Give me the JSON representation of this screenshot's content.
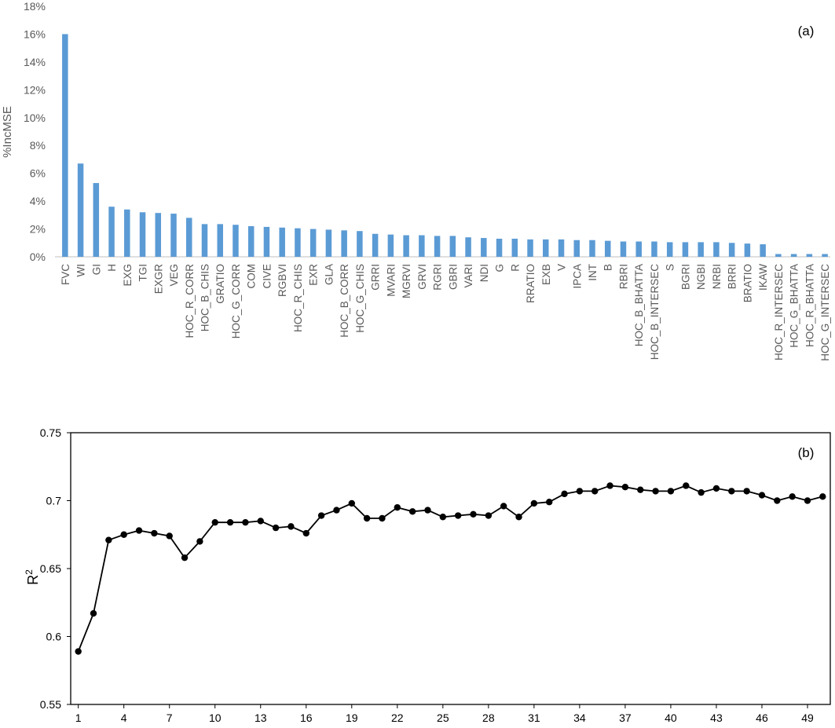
{
  "chart_data": [
    {
      "type": "bar",
      "panel_label": "(a)",
      "ylabel": "%IncMSE",
      "yticks": [
        "0%",
        "2%",
        "4%",
        "6%",
        "8%",
        "10%",
        "12%",
        "14%",
        "16%",
        "18%"
      ],
      "ylim": [
        0,
        18
      ],
      "grid": false,
      "bar_color": "#5b9bd5",
      "categories": [
        "FVC",
        "WI",
        "GI",
        "H",
        "EXG",
        "TGI",
        "EXGR",
        "VEG",
        "HOC_R_CORR",
        "HOC_B_CHIS",
        "GRATIO",
        "HOC_G_CORR",
        "COM",
        "CIVE",
        "RGBVI",
        "HOC_R_CHIS",
        "EXR",
        "GLA",
        "HOC_B_CORR",
        "HOC_G_CHIS",
        "GRRI",
        "MVARI",
        "MGRVI",
        "GRVI",
        "RGRI",
        "GBRI",
        "VARI",
        "NDI",
        "G",
        "R",
        "RRATIO",
        "EXB",
        "V",
        "IPCA",
        "INT",
        "B",
        "RBRI",
        "HOC_B_BHATTA",
        "HOC_B_INTERSEC",
        "S",
        "BGRI",
        "NGBI",
        "NRBI",
        "BRRI",
        "BRATIO",
        "IKAW",
        "HOC_R_INTERSEC",
        "HOC_G_BHATTA",
        "HOC_R_BHATTA",
        "HOC_G_INTERSEC"
      ],
      "values": [
        16.0,
        6.7,
        5.3,
        3.6,
        3.4,
        3.2,
        3.15,
        3.1,
        2.8,
        2.35,
        2.35,
        2.3,
        2.2,
        2.15,
        2.1,
        2.05,
        2.0,
        1.95,
        1.9,
        1.85,
        1.65,
        1.6,
        1.55,
        1.55,
        1.5,
        1.5,
        1.4,
        1.35,
        1.3,
        1.3,
        1.25,
        1.25,
        1.25,
        1.2,
        1.2,
        1.15,
        1.1,
        1.1,
        1.1,
        1.05,
        1.05,
        1.05,
        1.05,
        1.0,
        0.95,
        0.9,
        0.2,
        0.2,
        0.2,
        0.2
      ]
    },
    {
      "type": "line",
      "panel_label": "(b)",
      "ylabel": "R",
      "ylabel_sup": "2",
      "ylim": [
        0.55,
        0.75
      ],
      "yticks": [
        "0.55",
        "0.6",
        "0.65",
        "0.7",
        "0.75"
      ],
      "xlim": [
        0.5,
        50.5
      ],
      "xticks": [
        "1",
        "4",
        "7",
        "10",
        "13",
        "16",
        "19",
        "22",
        "25",
        "28",
        "31",
        "34",
        "37",
        "40",
        "43",
        "46",
        "49"
      ],
      "grid": false,
      "line_color": "#000000",
      "x": [
        1,
        2,
        3,
        4,
        5,
        6,
        7,
        8,
        9,
        10,
        11,
        12,
        13,
        14,
        15,
        16,
        17,
        18,
        19,
        20,
        21,
        22,
        23,
        24,
        25,
        26,
        27,
        28,
        29,
        30,
        31,
        32,
        33,
        34,
        35,
        36,
        37,
        38,
        39,
        40,
        41,
        42,
        43,
        44,
        45,
        46,
        47,
        48,
        49,
        50
      ],
      "values": [
        0.589,
        0.617,
        0.671,
        0.675,
        0.678,
        0.676,
        0.674,
        0.658,
        0.67,
        0.684,
        0.684,
        0.684,
        0.685,
        0.68,
        0.681,
        0.676,
        0.689,
        0.693,
        0.698,
        0.687,
        0.687,
        0.695,
        0.692,
        0.693,
        0.688,
        0.689,
        0.69,
        0.689,
        0.696,
        0.688,
        0.698,
        0.699,
        0.705,
        0.707,
        0.707,
        0.711,
        0.71,
        0.708,
        0.707,
        0.707,
        0.711,
        0.706,
        0.709,
        0.707,
        0.707,
        0.704,
        0.7,
        0.703,
        0.7,
        0.703
      ]
    }
  ]
}
